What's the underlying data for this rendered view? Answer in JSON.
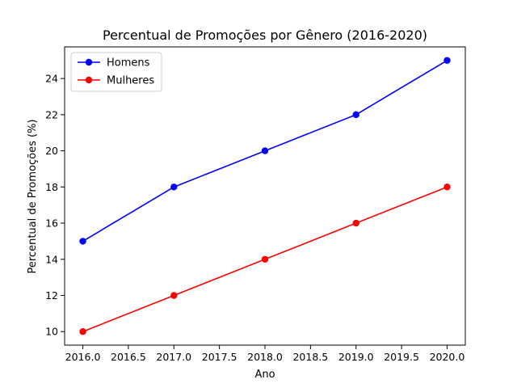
{
  "chart_data": {
    "type": "line",
    "title": "Percentual de Promoções por Gênero (2016-2020)",
    "xlabel": "Ano",
    "ylabel": "Percentual de Promoções (%)",
    "x": [
      2016,
      2017,
      2018,
      2019,
      2020
    ],
    "series": [
      {
        "name": "Homens",
        "values": [
          15,
          18,
          20,
          22,
          25
        ],
        "color": "#0000ff"
      },
      {
        "name": "Mulheres",
        "values": [
          10,
          12,
          14,
          16,
          18
        ],
        "color": "#ff0000"
      }
    ],
    "xlim": [
      2015.8,
      2020.2
    ],
    "ylim": [
      9.25,
      25.75
    ],
    "xticks": [
      2016.0,
      2016.5,
      2017.0,
      2017.5,
      2018.0,
      2018.5,
      2019.0,
      2019.5,
      2020.0
    ],
    "xtick_labels": [
      "2016.0",
      "2016.5",
      "2017.0",
      "2017.5",
      "2018.0",
      "2018.5",
      "2019.0",
      "2019.5",
      "2020.0"
    ],
    "yticks": [
      10,
      12,
      14,
      16,
      18,
      20,
      22,
      24
    ],
    "ytick_labels": [
      "10",
      "12",
      "14",
      "16",
      "18",
      "20",
      "22",
      "24"
    ],
    "grid": false,
    "legend_position": "upper left",
    "marker": "circle"
  }
}
